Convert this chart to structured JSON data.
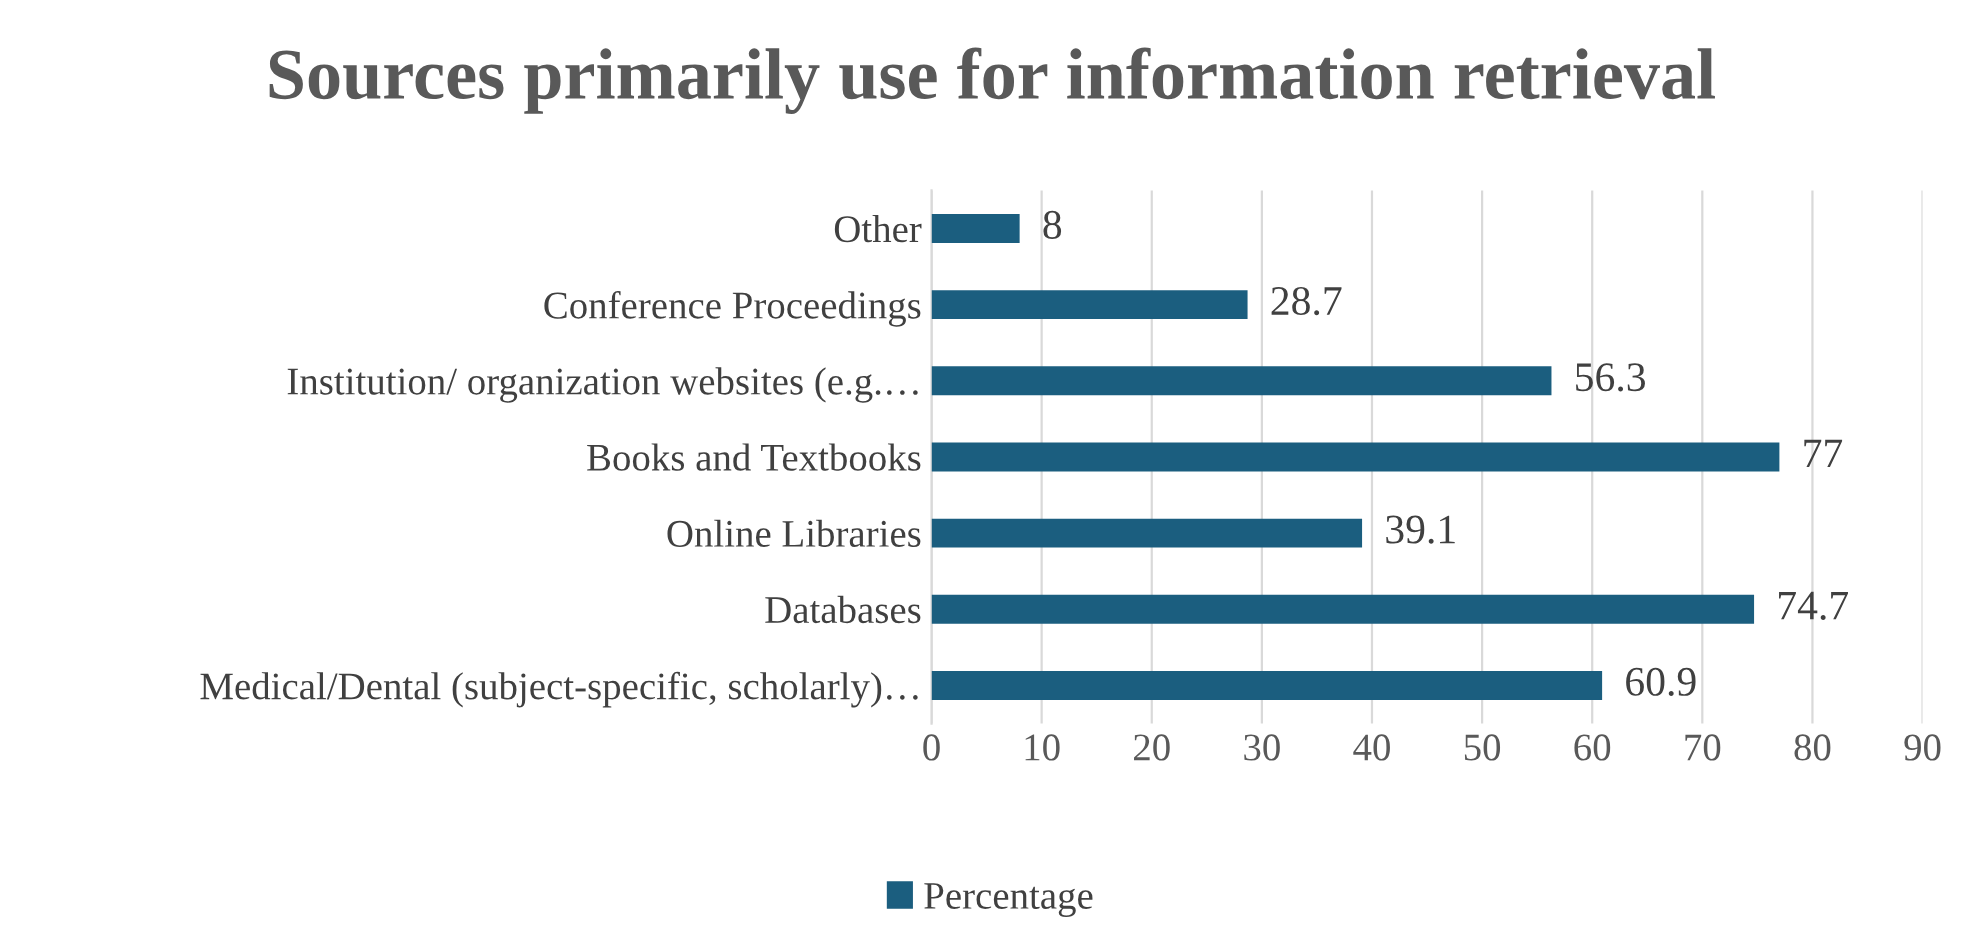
{
  "chart_data": {
    "type": "bar",
    "orientation": "horizontal",
    "title": "Sources primarily use for information retrieval",
    "categories": [
      "Other",
      "Conference Proceedings",
      "Institution/ organization websites (e.g.…",
      "Books and Textbooks",
      "Online Libraries",
      "Databases",
      "Medical/Dental (subject-specific, scholarly)…"
    ],
    "series": [
      {
        "name": "Percentage",
        "color": "#1b5e7f",
        "values": [
          8,
          28.7,
          56.3,
          77,
          39.1,
          74.7,
          60.9
        ]
      }
    ],
    "xlim": [
      0,
      90
    ],
    "xticks": [
      0,
      10,
      20,
      30,
      40,
      50,
      60,
      70,
      80,
      90
    ],
    "grid": "x",
    "legend": "bottom",
    "data_labels": true
  }
}
